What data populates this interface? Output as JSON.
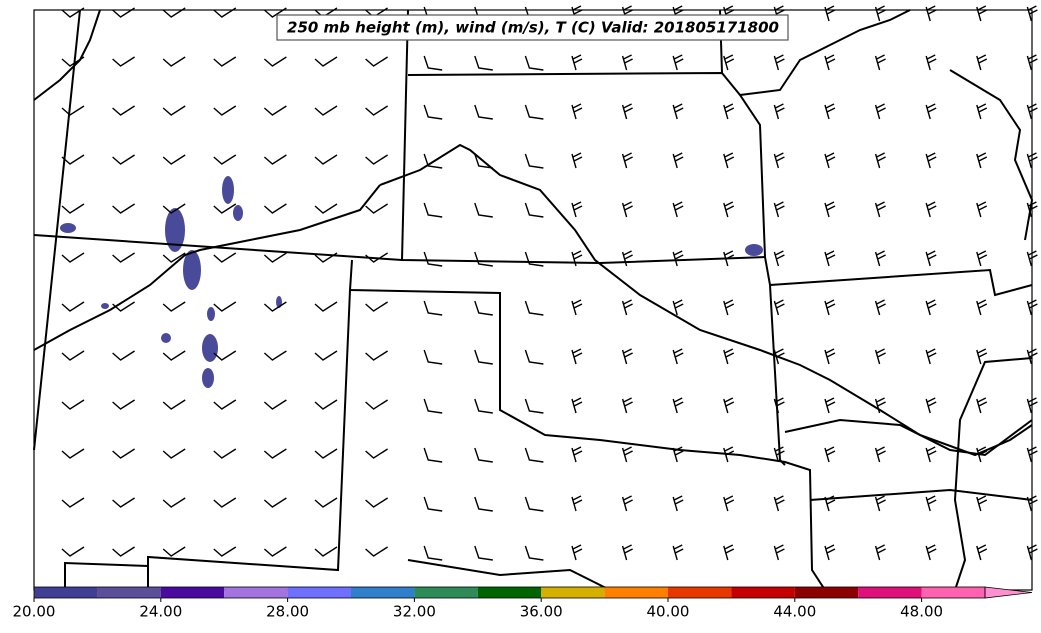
{
  "title": "250 mb height (m), wind (m/s), T (C) Valid: 201805171800",
  "colorbar": {
    "bounds": [
      20,
      22,
      24,
      26,
      28,
      30,
      32,
      34,
      36,
      38,
      40,
      42,
      44,
      46,
      48,
      50
    ],
    "colors": [
      "#3f3f94",
      "#5b4f9a",
      "#4a0aa0",
      "#a473e0",
      "#7070ff",
      "#2f7fcd",
      "#2e8b57",
      "#006400",
      "#d6b000",
      "#ff8000",
      "#e83800",
      "#c40000",
      "#8b0000",
      "#e0107a",
      "#ff62b0"
    ],
    "extend_color": "#ff90d0",
    "ticks": [
      {
        "value": 20,
        "label": "20.00"
      },
      {
        "value": 24,
        "label": "24.00"
      },
      {
        "value": 28,
        "label": "28.00"
      },
      {
        "value": 32,
        "label": "32.00"
      },
      {
        "value": 36,
        "label": "36.00"
      },
      {
        "value": 40,
        "label": "40.00"
      },
      {
        "value": 44,
        "label": "44.00"
      },
      {
        "value": 48,
        "label": "48.00"
      }
    ]
  }
}
